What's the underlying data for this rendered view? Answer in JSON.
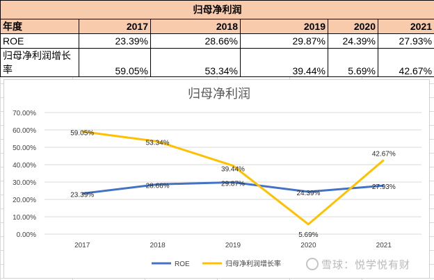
{
  "table": {
    "title": "归母净利润",
    "header_label": "年度",
    "years": [
      "2017",
      "2018",
      "2019",
      "2020",
      "2021"
    ],
    "rows": [
      {
        "label": "ROE",
        "values": [
          "23.39%",
          "28.66%",
          "29.87%",
          "24.39%",
          "27.93%"
        ]
      },
      {
        "label": "归母净利润增长率",
        "values": [
          "59.05%",
          "53.34%",
          "39.44%",
          "5.69%",
          "42.67%"
        ]
      }
    ]
  },
  "chart_data": {
    "type": "line",
    "title": "归母净利润",
    "categories": [
      "2017",
      "2018",
      "2019",
      "2020",
      "2021"
    ],
    "series": [
      {
        "name": "ROE",
        "values": [
          23.39,
          28.66,
          29.87,
          24.39,
          27.93
        ],
        "labels": [
          "23.39%",
          "28.66%",
          "29.87%",
          "24.39%",
          "27.93%"
        ],
        "color": "#4472c4"
      },
      {
        "name": "归母净利润增长率",
        "values": [
          59.05,
          53.34,
          39.44,
          5.69,
          42.67
        ],
        "labels": [
          "59.05%",
          "53.34%",
          "39.44%",
          "5.69%",
          "42.67%"
        ],
        "color": "#ffc000"
      }
    ],
    "ylim": [
      0,
      70
    ],
    "yticks": [
      "0.00%",
      "10.00%",
      "20.00%",
      "30.00%",
      "40.00%",
      "50.00%",
      "60.00%",
      "70.00%"
    ],
    "grid": true,
    "legend": "bottom"
  },
  "watermark": "雪球：悦学悦有财"
}
